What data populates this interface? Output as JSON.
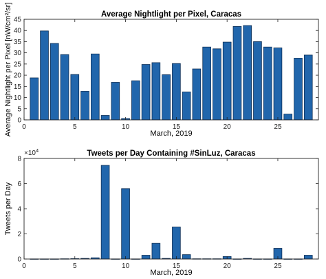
{
  "colors": {
    "bar": "#2166ac",
    "bar_edge": "#0f2f55",
    "axes": "#222222"
  },
  "chart_data": [
    {
      "type": "bar",
      "title": "Average Nightlight per Pixel, Caracas",
      "xlabel": "March, 2019",
      "ylabel": "Average Nightlight per Pixel [nW/cm²/sr]",
      "x": [
        1,
        2,
        3,
        4,
        5,
        6,
        7,
        8,
        9,
        10,
        11,
        12,
        13,
        14,
        15,
        16,
        17,
        18,
        19,
        20,
        21,
        22,
        23,
        24,
        25,
        26,
        27,
        28
      ],
      "values": [
        18.8,
        39.8,
        34.2,
        29.2,
        20.3,
        12.8,
        29.5,
        2.0,
        16.8,
        0.6,
        17.5,
        24.8,
        25.6,
        20.2,
        25.2,
        12.5,
        22.8,
        32.6,
        31.8,
        34.8,
        41.8,
        42.2,
        35.0,
        32.6,
        32.2,
        2.6,
        27.6,
        29.0
      ],
      "xlim": [
        0,
        29
      ],
      "ylim": [
        0,
        45
      ],
      "xticks": [
        0,
        5,
        10,
        15,
        20,
        25
      ],
      "yticks": [
        0,
        5,
        10,
        15,
        20,
        25,
        30,
        35,
        40,
        45
      ],
      "grid": false
    },
    {
      "type": "bar",
      "title": "Tweets per Day Containing #SinLuz, Caracas",
      "xlabel": "March, 2019",
      "ylabel": "Tweets per Day",
      "y_exponent_label": "×10",
      "y_exponent": "4",
      "x": [
        1,
        2,
        3,
        4,
        5,
        6,
        7,
        8,
        9,
        10,
        11,
        12,
        13,
        14,
        15,
        16,
        17,
        18,
        19,
        20,
        21,
        22,
        23,
        24,
        25,
        26,
        27,
        28
      ],
      "values": [
        0.01,
        0.01,
        0.01,
        0.02,
        0.03,
        0.05,
        0.1,
        7.45,
        0.01,
        5.6,
        0.01,
        0.3,
        1.25,
        0.05,
        2.55,
        0.35,
        0.02,
        0.02,
        0.02,
        0.2,
        0.01,
        0.05,
        0.01,
        0.01,
        0.85,
        0.01,
        0.01,
        0.3
      ],
      "xlim": [
        0,
        29
      ],
      "ylim": [
        0,
        8
      ],
      "xticks": [
        0,
        5,
        10,
        15,
        20,
        25
      ],
      "yticks": [
        0,
        2,
        4,
        6,
        8
      ],
      "grid": false
    }
  ]
}
